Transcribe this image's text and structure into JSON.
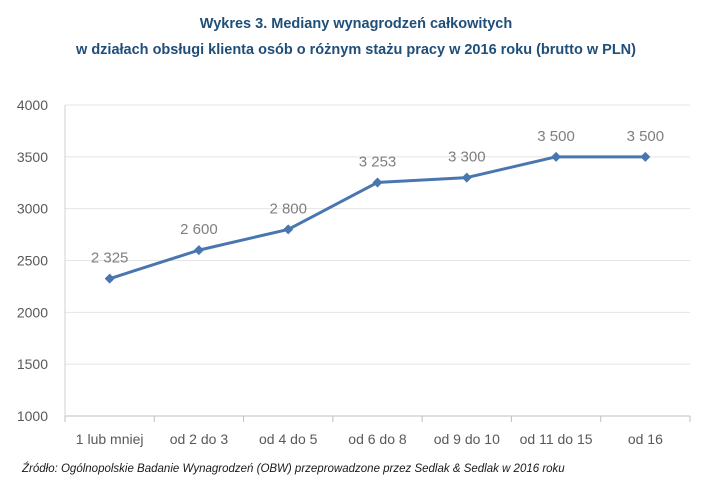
{
  "chart_data": {
    "type": "line",
    "title_line1": "Wykres 3. Mediany wynagrodzeń całkowitych",
    "title_line2": "w działach obsługi klienta osób o różnym stażu pracy w 2016 roku (brutto w PLN)",
    "categories": [
      "1 lub mniej",
      "od 2 do 3",
      "od 4 do 5",
      "od 6 do 8",
      "od 9 do 10",
      "od 11 do 15",
      "od 16"
    ],
    "values": [
      2325,
      2600,
      2800,
      3253,
      3300,
      3500,
      3500
    ],
    "data_labels": [
      "2 325",
      "2 600",
      "2 800",
      "3 253",
      "3 300",
      "3 500",
      "3 500"
    ],
    "yticks": [
      "1000",
      "1500",
      "2000",
      "2500",
      "3000",
      "3500",
      "4000"
    ],
    "ylim": [
      1000,
      4000
    ],
    "grid": true,
    "color": "#4A76B0"
  },
  "source": "Źródło: Ogólnopolskie Badanie Wynagrodzeń (OBW) przeprowadzone przez Sedlak & Sedlak w 2016 roku"
}
